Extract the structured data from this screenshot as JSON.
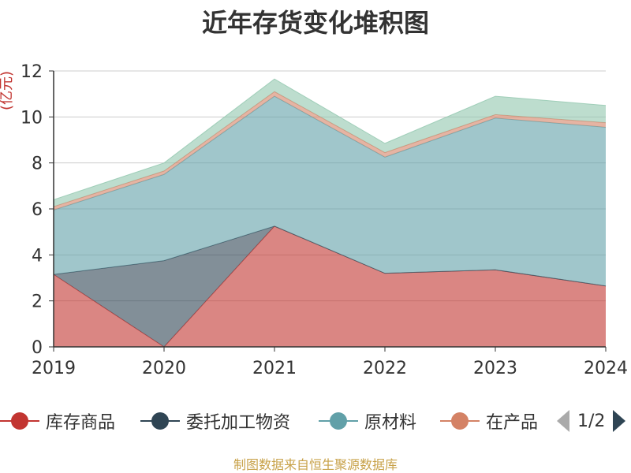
{
  "chart_data": {
    "type": "area",
    "stacked": true,
    "title": "近年存货变化堆积图",
    "ylabel": "(亿元)",
    "xlabel": "",
    "categories": [
      "2019",
      "2020",
      "2021",
      "2022",
      "2023",
      "2024"
    ],
    "ylim": [
      0,
      12
    ],
    "yticks": [
      "0",
      "2",
      "4",
      "6",
      "8",
      "10",
      "12"
    ],
    "grid": true,
    "legend_position": "bottom",
    "series": [
      {
        "name": "库存商品",
        "color": "#c23531",
        "values": [
          3.15,
          0.0,
          5.25,
          3.2,
          3.35,
          2.65
        ]
      },
      {
        "name": "委托加工物资",
        "color": "#2f4554",
        "values": [
          0.0,
          3.75,
          0.0,
          0.0,
          0.0,
          0.0
        ]
      },
      {
        "name": "原材料",
        "color": "#61a0a8",
        "values": [
          2.8,
          3.75,
          5.65,
          5.05,
          6.6,
          6.9
        ]
      },
      {
        "name": "在产品",
        "color": "#d48265",
        "values": [
          0.15,
          0.15,
          0.2,
          0.2,
          0.15,
          0.2
        ]
      },
      {
        "name": "",
        "color": "#91c7ae",
        "values": [
          0.3,
          0.35,
          0.55,
          0.4,
          0.8,
          0.75
        ]
      }
    ]
  },
  "legend": {
    "items": [
      "库存商品",
      "委托加工物资",
      "原材料",
      "在产品"
    ],
    "page": "1/2"
  },
  "source": "制图数据来自恒生聚源数据库"
}
